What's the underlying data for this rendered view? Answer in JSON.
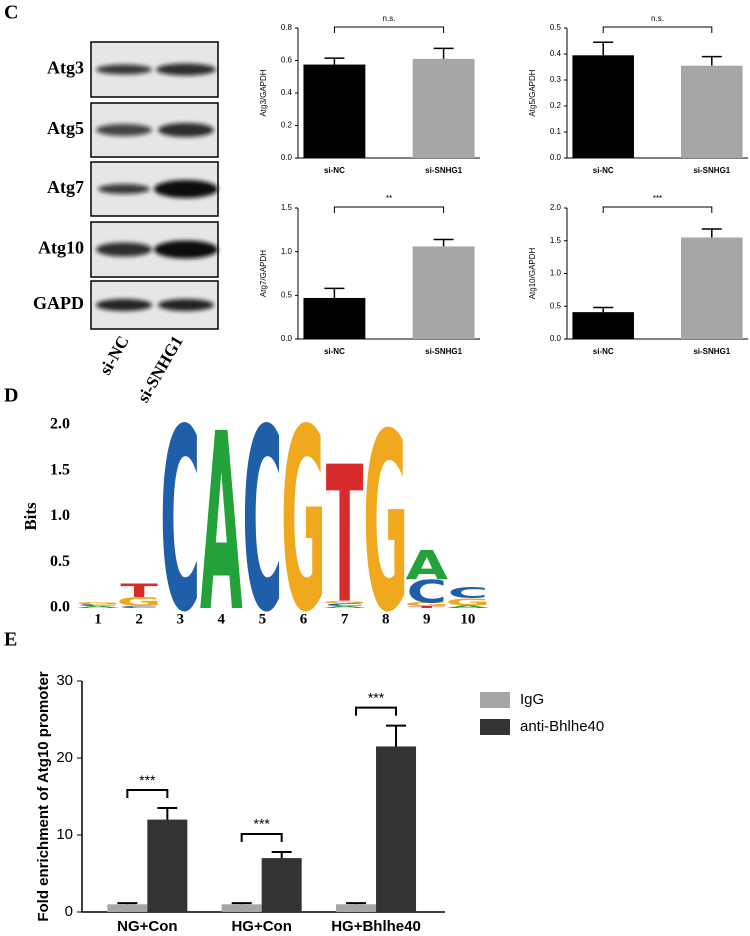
{
  "blot": {
    "panel_label": "C",
    "proteins": [
      "Atg3",
      "Atg5",
      "Atg7",
      "Atg10",
      "GAPD"
    ],
    "lanes": [
      "si-NC",
      "si-SNHG1"
    ]
  },
  "chart_data": [
    {
      "type": "bar",
      "ylabel": "Atg3/GAPDH",
      "categories": [
        "si-NC",
        "si-SNHG1"
      ],
      "values": [
        0.575,
        0.61
      ],
      "errors": [
        0.04,
        0.065
      ],
      "colors": [
        "#000000",
        "#a6a6a6"
      ],
      "ylim": [
        0,
        0.8
      ],
      "yticks": [
        {
          "value": 0,
          "label": "0.0"
        },
        0.2,
        0.4,
        0.6,
        0.8
      ],
      "annotation": "n.s."
    },
    {
      "type": "bar",
      "ylabel": "Atg5/GAPDH",
      "categories": [
        "si-NC",
        "si-SNHG1"
      ],
      "values": [
        0.395,
        0.355
      ],
      "errors": [
        0.05,
        0.035
      ],
      "colors": [
        "#000000",
        "#a6a6a6"
      ],
      "ylim": [
        0,
        0.5
      ],
      "yticks": [
        {
          "value": 0,
          "label": "0.0"
        },
        0.1,
        0.2,
        0.3,
        0.4,
        0.5
      ],
      "annotation": "n.s."
    },
    {
      "type": "bar",
      "ylabel": "Atg7/GAPDH",
      "categories": [
        "si-NC",
        "si-SNHG1"
      ],
      "values": [
        0.47,
        1.06
      ],
      "errors": [
        0.11,
        0.08
      ],
      "colors": [
        "#000000",
        "#a6a6a6"
      ],
      "ylim": [
        0,
        1.5
      ],
      "yticks": [
        {
          "value": 0,
          "label": "0.0"
        },
        0.5,
        {
          "value": 1,
          "label": "1.0"
        },
        1.5
      ],
      "annotation": "**"
    },
    {
      "type": "bar",
      "ylabel": "Atg10/GAPDH",
      "categories": [
        "si-NC",
        "si-SNHG1"
      ],
      "values": [
        0.41,
        1.55
      ],
      "errors": [
        0.07,
        0.13
      ],
      "colors": [
        "#000000",
        "#a6a6a6"
      ],
      "ylim": [
        0,
        2
      ],
      "yticks": [
        {
          "value": 0,
          "label": "0.0"
        },
        0.5,
        {
          "value": 1,
          "label": "1.0"
        },
        1.5,
        {
          "value": 2,
          "label": "2.0"
        }
      ],
      "annotation": "***"
    },
    {
      "type": "logo",
      "panel_label": "D",
      "ylabel": "Bits",
      "ylim": [
        0,
        2
      ],
      "yticks": [
        {
          "value": 0,
          "label": "0.0"
        },
        0.5,
        {
          "value": 1,
          "label": "1.0"
        },
        1.5,
        {
          "value": 2,
          "label": "2.0"
        }
      ],
      "positions": [
        1,
        2,
        3,
        4,
        5,
        6,
        7,
        8,
        9,
        10
      ],
      "letters": [
        [
          "A",
          "C",
          "G"
        ],
        [
          "C",
          "G",
          "T"
        ],
        [
          "C"
        ],
        [
          "A"
        ],
        [
          "C"
        ],
        [
          "G"
        ],
        [
          "A",
          "C",
          "G",
          "T"
        ],
        [
          "G"
        ],
        [
          "T",
          "G",
          "C",
          "A"
        ],
        [
          "A",
          "G",
          "C"
        ]
      ],
      "heights": [
        [
          0.02,
          0.02,
          0.03
        ],
        [
          0.02,
          0.1,
          0.15
        ],
        [
          2.0
        ],
        [
          1.95
        ],
        [
          2.0
        ],
        [
          2.0
        ],
        [
          0.02,
          0.03,
          0.03,
          1.5
        ],
        [
          1.95
        ],
        [
          0.02,
          0.04,
          0.25,
          0.32
        ],
        [
          0.03,
          0.08,
          0.12
        ]
      ],
      "colors": {
        "A": "#23a23a",
        "C": "#1f5ea8",
        "G": "#f0a91e",
        "T": "#d82b2b"
      }
    },
    {
      "type": "grouped_bar",
      "panel_label": "E",
      "ylabel": "Fold enrichment of Atg10 promoter",
      "categories": [
        "NG+Con",
        "HG+Con",
        "HG+Bhlhe40"
      ],
      "series": [
        {
          "name": "IgG",
          "color": "#a6a6a6",
          "values": [
            1,
            1,
            1
          ],
          "errors": [
            0.15,
            0.15,
            0.15
          ]
        },
        {
          "name": "anti-Bhlhe40",
          "color": "#333333",
          "values": [
            12,
            7,
            21.5
          ],
          "errors": [
            1.5,
            0.8,
            2.7
          ]
        }
      ],
      "ylim": [
        0,
        30
      ],
      "yticks": [
        0,
        10,
        20,
        30
      ],
      "annotations": [
        "***",
        "***",
        "***"
      ],
      "legend": "upper right"
    }
  ]
}
